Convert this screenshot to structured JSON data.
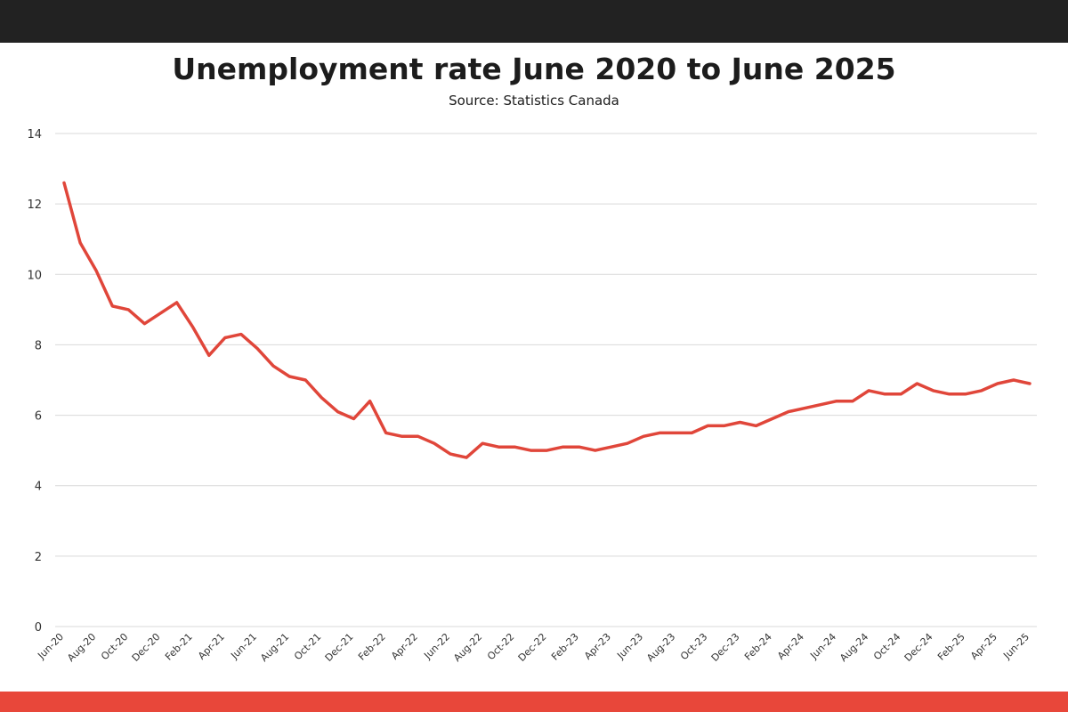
{
  "header": {
    "title": "Unemployment rate June 2020 to June 2025",
    "subtitle": "Source: Statistics Canada"
  },
  "colors": {
    "top_bar": "#222222",
    "bottom_bar": "#e8473a",
    "line": "#e0463a",
    "grid": "#d9d9d9"
  },
  "chart_data": {
    "type": "line",
    "title": "Unemployment rate June 2020 to June 2025",
    "subtitle": "Source: Statistics Canada",
    "xlabel": "",
    "ylabel": "",
    "ylim": [
      0,
      14
    ],
    "yticks": [
      0,
      2,
      4,
      6,
      8,
      10,
      12,
      14
    ],
    "grid": "horizontal",
    "x": [
      "Jun-20",
      "Jul-20",
      "Aug-20",
      "Sep-20",
      "Oct-20",
      "Nov-20",
      "Dec-20",
      "Jan-21",
      "Feb-21",
      "Mar-21",
      "Apr-21",
      "May-21",
      "Jun-21",
      "Jul-21",
      "Aug-21",
      "Sep-21",
      "Oct-21",
      "Nov-21",
      "Dec-21",
      "Jan-22",
      "Feb-22",
      "Mar-22",
      "Apr-22",
      "May-22",
      "Jun-22",
      "Jul-22",
      "Aug-22",
      "Sep-22",
      "Oct-22",
      "Nov-22",
      "Dec-22",
      "Jan-23",
      "Feb-23",
      "Mar-23",
      "Apr-23",
      "May-23",
      "Jun-23",
      "Jul-23",
      "Aug-23",
      "Sep-23",
      "Oct-23",
      "Nov-23",
      "Dec-23",
      "Jan-24",
      "Feb-24",
      "Mar-24",
      "Apr-24",
      "May-24",
      "Jun-24",
      "Jul-24",
      "Aug-24",
      "Sep-24",
      "Oct-24",
      "Nov-24",
      "Dec-24",
      "Jan-25",
      "Feb-25",
      "Mar-25",
      "Apr-25",
      "May-25",
      "Jun-25"
    ],
    "xtick_labels": [
      "Jun-20",
      "Aug-20",
      "Oct-20",
      "Dec-20",
      "Feb-21",
      "Apr-21",
      "Jun-21",
      "Aug-21",
      "Oct-21",
      "Dec-21",
      "Feb-22",
      "Apr-22",
      "Jun-22",
      "Aug-22",
      "Oct-22",
      "Dec-22",
      "Feb-23",
      "Apr-23",
      "Jun-23",
      "Aug-23",
      "Oct-23",
      "Dec-23",
      "Feb-24",
      "Apr-24",
      "Jun-24",
      "Aug-24",
      "Oct-24",
      "Dec-24",
      "Feb-25",
      "Apr-25",
      "Jun-25"
    ],
    "series": [
      {
        "values": [
          12.6,
          10.9,
          10.1,
          9.1,
          9.0,
          8.6,
          8.9,
          9.2,
          8.5,
          7.7,
          8.2,
          8.3,
          7.9,
          7.4,
          7.1,
          7.0,
          6.5,
          6.1,
          5.9,
          6.4,
          5.5,
          5.4,
          5.4,
          5.2,
          4.9,
          4.8,
          5.2,
          5.1,
          5.1,
          5.0,
          5.0,
          5.1,
          5.1,
          5.0,
          5.1,
          5.2,
          5.4,
          5.5,
          5.5,
          5.5,
          5.7,
          5.7,
          5.8,
          5.7,
          5.9,
          6.1,
          6.2,
          6.3,
          6.4,
          6.4,
          6.7,
          6.6,
          6.6,
          6.9,
          6.7,
          6.6,
          6.6,
          6.7,
          6.9,
          7.0,
          6.9
        ]
      }
    ]
  }
}
